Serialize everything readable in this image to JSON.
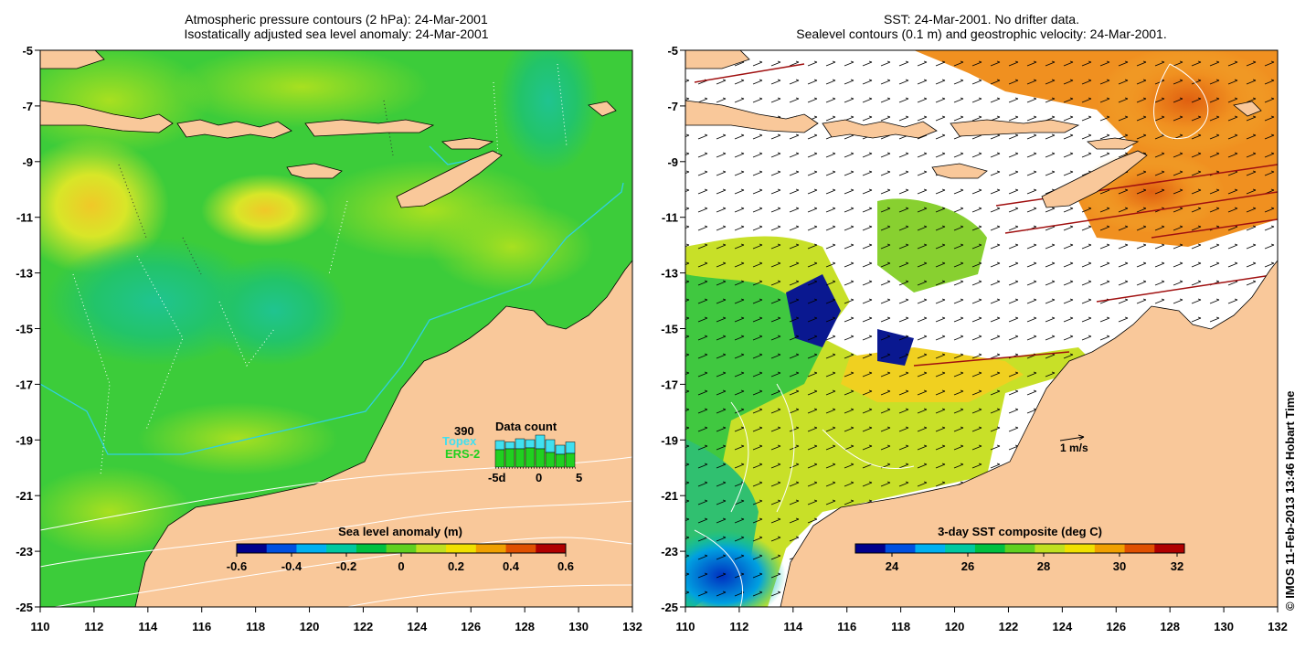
{
  "left_panel": {
    "title_line1": "Atmospheric pressure contours (2 hPa): 24-Mar-2001",
    "title_line2": "Isostatically adjusted sea level anomaly: 24-Mar-2001",
    "colorbar_label": "Sea level anomaly (m)",
    "colorbar_ticks": [
      "-0.6",
      "-0.4",
      "-0.2",
      "0",
      "0.2",
      "0.4",
      "0.6"
    ],
    "colorbar_colors": [
      "#00008c",
      "#0050e0",
      "#00b0f0",
      "#00c8a0",
      "#00c040",
      "#60d020",
      "#c0e020",
      "#f0e000",
      "#f0a000",
      "#e05000",
      "#b00000"
    ],
    "data_count": {
      "title": "Data count",
      "max_label": "390",
      "topex_label": "Topex",
      "ers_label": "ERS-2",
      "axis_labels": [
        "-5d",
        "0",
        "5"
      ],
      "topex_color": "#40e0f0",
      "ers_color": "#20d020",
      "topex_values": [
        0.58,
        0.55,
        0.62,
        0.6,
        0.7,
        0.6,
        0.48,
        0.55
      ],
      "ers_values": [
        0.38,
        0.4,
        0.4,
        0.42,
        0.4,
        0.32,
        0.28,
        0.3
      ]
    }
  },
  "right_panel": {
    "title_line1": "SST: 24-Mar-2001. No drifter data.",
    "title_line2": "Sealevel contours (0.1 m) and geostrophic velocity: 24-Mar-2001.",
    "colorbar_label": "3-day SST composite (deg C)",
    "colorbar_ticks": [
      "24",
      "26",
      "28",
      "30",
      "32"
    ],
    "colorbar_colors": [
      "#00008c",
      "#0050e0",
      "#00b0f0",
      "#00c8a0",
      "#00c040",
      "#60d020",
      "#c0e020",
      "#f0e000",
      "#f0a000",
      "#e05000",
      "#b00000"
    ],
    "velocity_scale_label": "1 m/s"
  },
  "axes": {
    "lat_labels": [
      "-5",
      "-7",
      "-9",
      "-11",
      "-13",
      "-15",
      "-17",
      "-19",
      "-21",
      "-23",
      "-25"
    ],
    "lon_labels": [
      "110",
      "112",
      "114",
      "116",
      "118",
      "120",
      "122",
      "124",
      "126",
      "128",
      "130",
      "132"
    ],
    "lat_range": [
      -25,
      -5
    ],
    "lon_range": [
      110,
      132
    ]
  },
  "colors": {
    "land": "#f9c89a",
    "sea_base_left": "#3ccc3a",
    "sea_light_left": "#88dd22",
    "sea_yellow": "#d8e628",
    "sea_teal": "#22c47a",
    "sst_orange": "#f09020",
    "sst_white": "#ffffff"
  },
  "copyright": "© IMOS 11-Feb-2013 13:46 Hobart Time"
}
